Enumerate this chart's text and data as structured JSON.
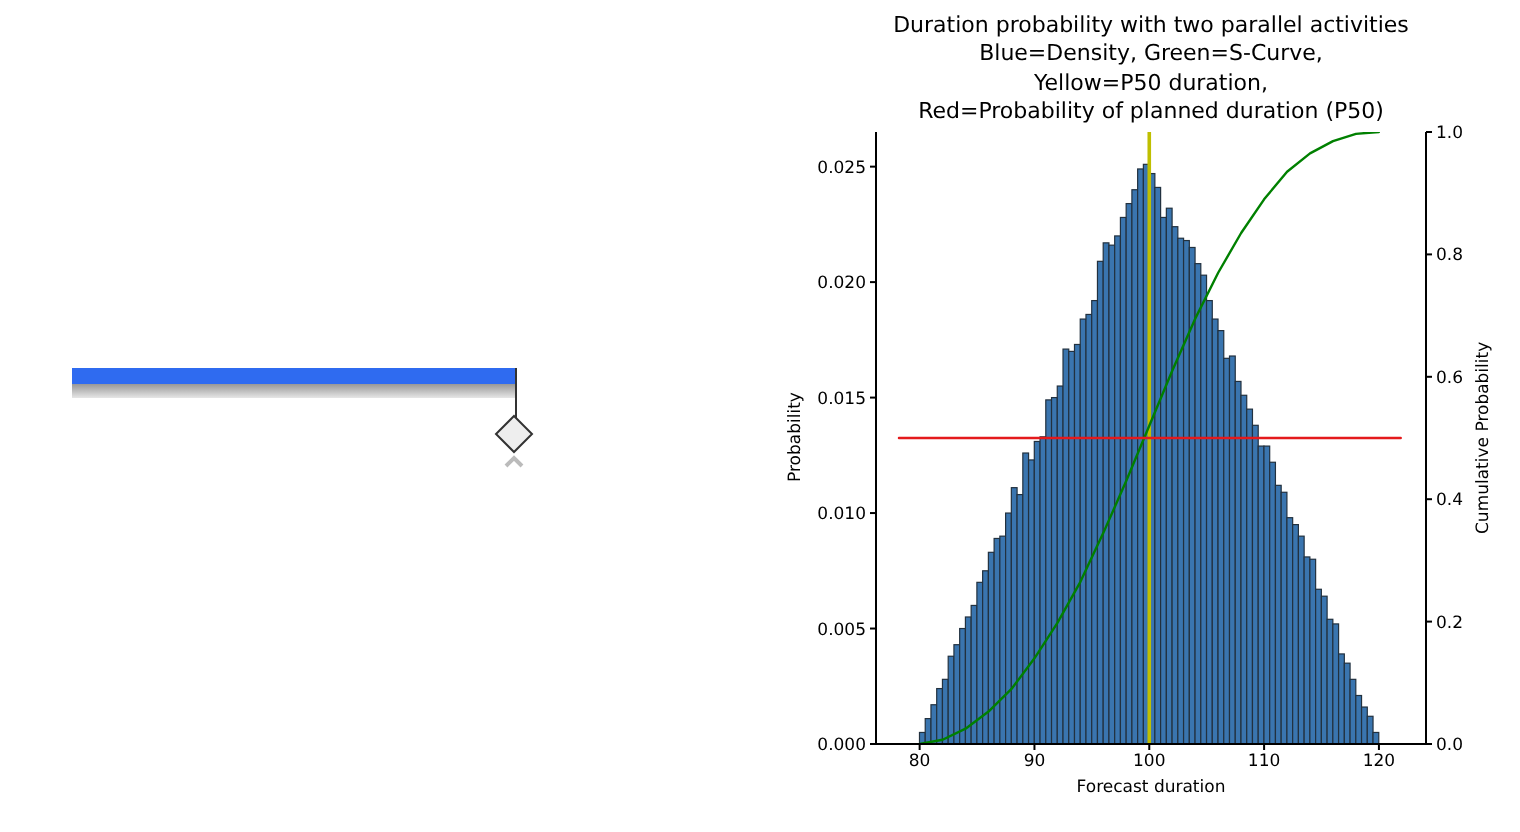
{
  "chart_data": {
    "type": "histogram",
    "title": "Duration probability with two parallel activities\nBlue=Density, Green=S-Curve,\nYellow=P50 duration,\nRed=Probability of planned duration (P50)",
    "xlabel": "Forecast duration",
    "ylabel": "Probability",
    "y2label": "Cumulative Probability",
    "bins": [
      80,
      80.5,
      81,
      81.5,
      82,
      82.5,
      83,
      83.5,
      84,
      84.5,
      85,
      85.5,
      86,
      86.5,
      87,
      87.5,
      88,
      88.5,
      89,
      89.5,
      90,
      90.5,
      91,
      91.5,
      92,
      92.5,
      93,
      93.5,
      94,
      94.5,
      95,
      95.5,
      96,
      96.5,
      97,
      97.5,
      98,
      98.5,
      99,
      99.5,
      100,
      100.5,
      101,
      101.5,
      102,
      102.5,
      103,
      103.5,
      104,
      104.5,
      105,
      105.5,
      106,
      106.5,
      107,
      107.5,
      108,
      108.5,
      109,
      109.5,
      110,
      110.5,
      111,
      111.5,
      112,
      112.5,
      113,
      113.5,
      114,
      114.5,
      115,
      115.5,
      116,
      116.5,
      117,
      117.5,
      118,
      118.5,
      119,
      119.5,
      120
    ],
    "values": [
      0.0005,
      0.0011,
      0.0017,
      0.0024,
      0.0028,
      0.0038,
      0.0043,
      0.005,
      0.0055,
      0.006,
      0.007,
      0.0075,
      0.0083,
      0.0089,
      0.009,
      0.01,
      0.0111,
      0.0108,
      0.0126,
      0.0123,
      0.0131,
      0.0133,
      0.0149,
      0.015,
      0.0155,
      0.0171,
      0.017,
      0.0173,
      0.0184,
      0.0186,
      0.0192,
      0.0209,
      0.0217,
      0.0216,
      0.022,
      0.0228,
      0.0234,
      0.024,
      0.0249,
      0.0251,
      0.0247,
      0.0241,
      0.0228,
      0.0232,
      0.0224,
      0.0219,
      0.0218,
      0.0215,
      0.0208,
      0.0203,
      0.0192,
      0.0184,
      0.0179,
      0.0167,
      0.0168,
      0.0157,
      0.0151,
      0.0145,
      0.0138,
      0.0129,
      0.0129,
      0.0122,
      0.0112,
      0.0109,
      0.0098,
      0.0095,
      0.009,
      0.0081,
      0.008,
      0.0067,
      0.0064,
      0.0054,
      0.0052,
      0.0039,
      0.0035,
      0.0028,
      0.0021,
      0.0016,
      0.0012,
      0.0005
    ],
    "color": "#3a75af",
    "series": [
      {
        "type": "line",
        "axis": "y2",
        "color": "#008000",
        "x": [
          80,
          82,
          84,
          86,
          88,
          90,
          92,
          94,
          96,
          98,
          100,
          102,
          104,
          106,
          108,
          110,
          112,
          114,
          116,
          118,
          120
        ],
        "values": [
          0,
          0.007,
          0.025,
          0.053,
          0.09,
          0.14,
          0.198,
          0.265,
          0.345,
          0.43,
          0.52,
          0.61,
          0.695,
          0.77,
          0.835,
          0.89,
          0.935,
          0.965,
          0.985,
          0.997,
          1.0
        ]
      },
      {
        "type": "line",
        "axis": "y2",
        "color": "#e41a1c",
        "x": [
          78.2,
          121.9
        ],
        "values": [
          0.5,
          0.5
        ]
      }
    ],
    "ref_lines": [
      {
        "axis": "x",
        "value": 100,
        "color": "#bfbf00"
      }
    ],
    "xlim": [
      76.2,
      124.1
    ],
    "xticks": [
      80,
      90,
      100,
      110,
      120
    ],
    "ylim": [
      0,
      0.0265
    ],
    "yticks": [
      {
        "value": 0,
        "label": "0.000"
      },
      {
        "value": 0.005,
        "label": "0.005"
      },
      {
        "value": 0.01,
        "label": "0.010"
      },
      {
        "value": 0.015,
        "label": "0.015"
      },
      {
        "value": 0.02,
        "label": "0.020"
      },
      {
        "value": 0.025,
        "label": "0.025"
      }
    ],
    "y2lim": [
      0,
      1
    ],
    "y2ticks": [
      {
        "value": 0,
        "label": "0.0"
      },
      {
        "value": 0.2,
        "label": "0.2"
      },
      {
        "value": 0.4,
        "label": "0.4"
      },
      {
        "value": 0.6,
        "label": "0.6"
      },
      {
        "value": 0.8,
        "label": "0.8"
      },
      {
        "value": 1,
        "label": "1.0"
      }
    ],
    "marker": "none"
  }
}
